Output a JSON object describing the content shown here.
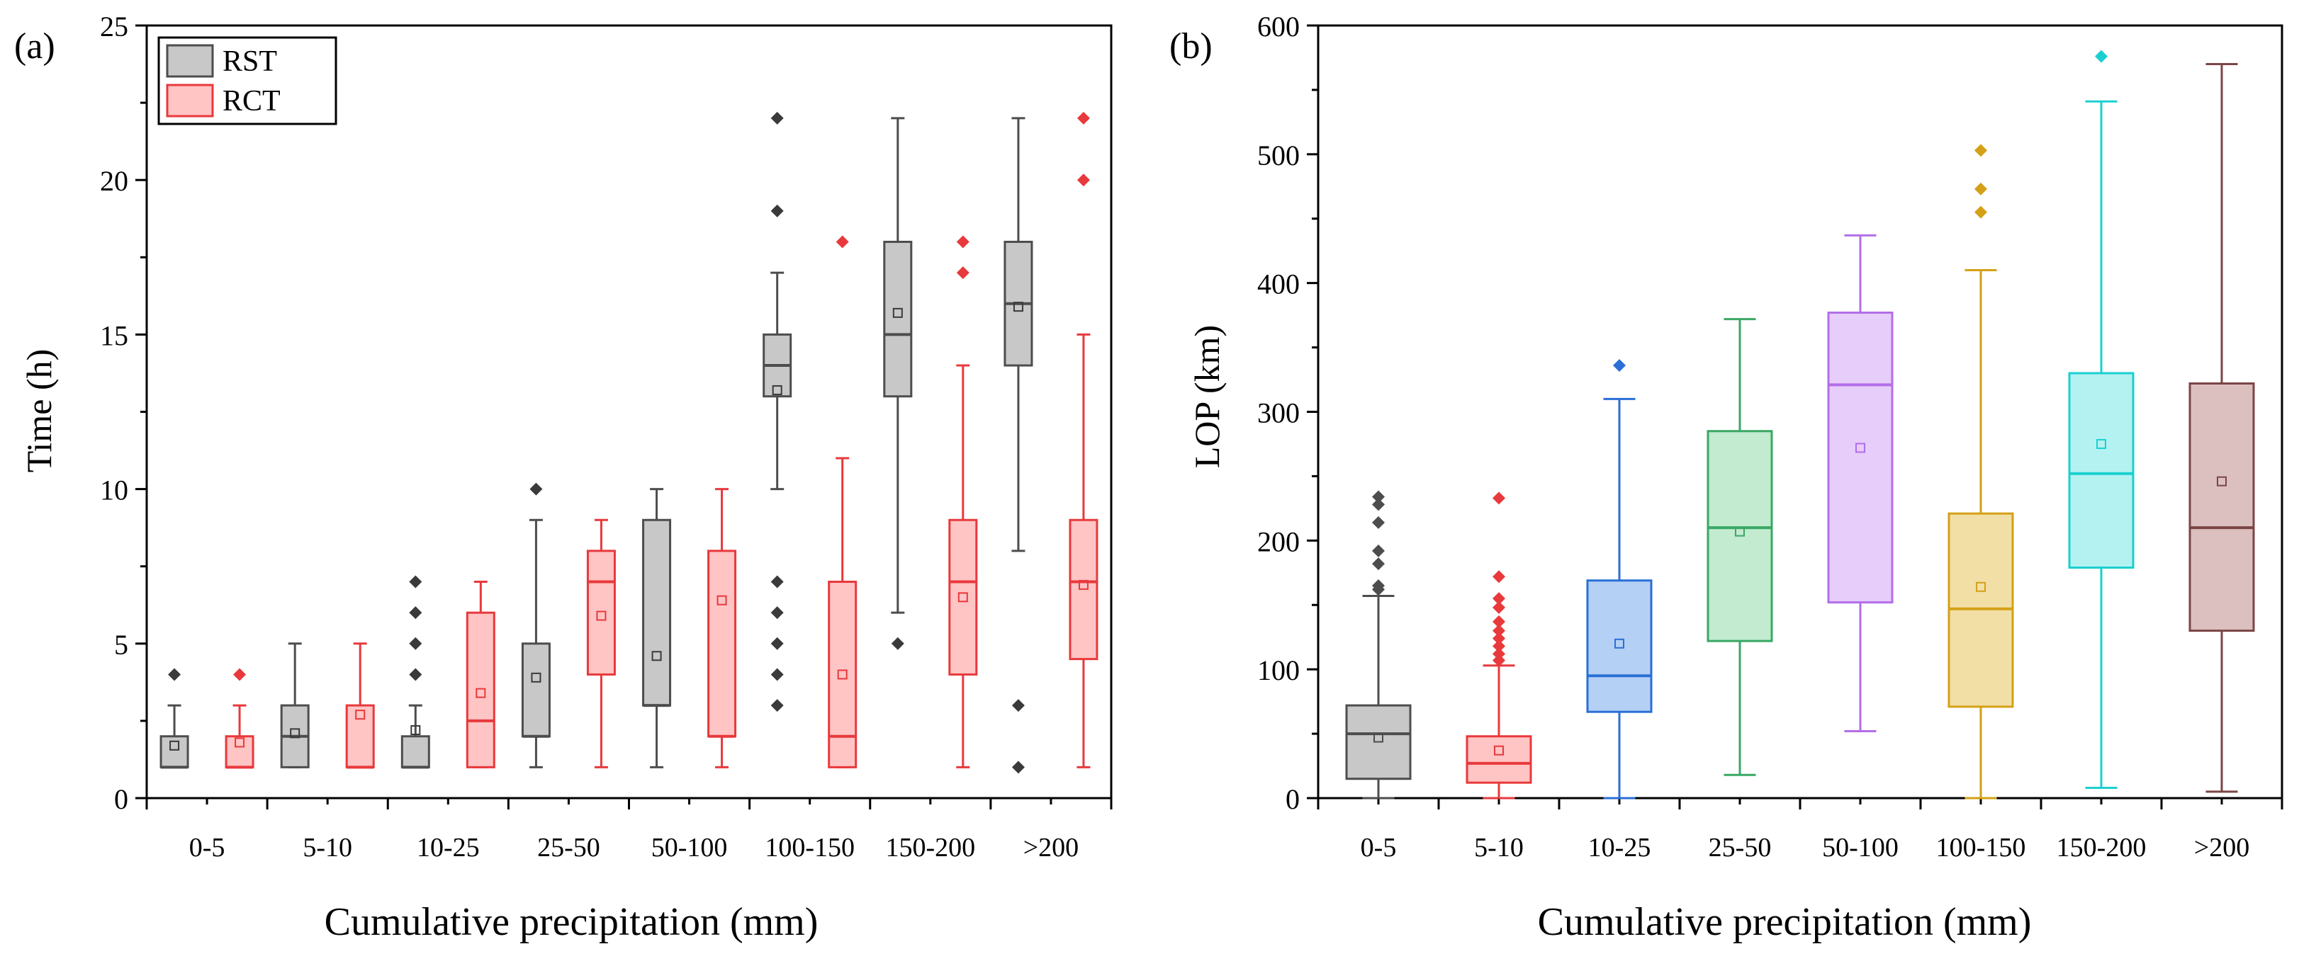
{
  "chart_data": [
    {
      "panel_label": "(a)",
      "type": "box",
      "ylabel": "Time (h)",
      "xlabel": "Cumulative precipitation (mm)",
      "ylim": [
        0,
        25
      ],
      "yticks": [
        0,
        5,
        10,
        15,
        20,
        25
      ],
      "categories": [
        "0-5",
        "5-10",
        "10-25",
        "25-50",
        "50-100",
        "100-150",
        "150-200",
        ">200"
      ],
      "legend": {
        "position": "top-left",
        "entries": [
          "RST",
          "RCT"
        ]
      },
      "series": [
        {
          "name": "RST",
          "fill": "#c8c8c8",
          "stroke": "#4d4d4d",
          "point_color": "#3a3a3a",
          "boxes": [
            {
              "q1": 1,
              "median": 1,
              "q3": 2,
              "mean": 1.7,
              "whisker_low": 1,
              "whisker_high": 3,
              "outliers": [
                4
              ]
            },
            {
              "q1": 1,
              "median": 2,
              "q3": 3,
              "mean": 2.1,
              "whisker_low": 1,
              "whisker_high": 5,
              "outliers": []
            },
            {
              "q1": 1,
              "median": 1,
              "q3": 2,
              "mean": 2.2,
              "whisker_low": 1,
              "whisker_high": 3,
              "outliers": [
                4,
                5,
                6,
                7
              ]
            },
            {
              "q1": 2,
              "median": 2,
              "q3": 5,
              "mean": 3.9,
              "whisker_low": 1,
              "whisker_high": 9,
              "outliers": [
                10
              ]
            },
            {
              "q1": 3,
              "median": 3,
              "q3": 9,
              "mean": 4.6,
              "whisker_low": 1,
              "whisker_high": 10,
              "outliers": []
            },
            {
              "q1": 13,
              "median": 14,
              "q3": 15,
              "mean": 13.2,
              "whisker_low": 10,
              "whisker_high": 17,
              "outliers": [
                3,
                4,
                5,
                6,
                7,
                19,
                22
              ]
            },
            {
              "q1": 13,
              "median": 15,
              "q3": 18,
              "mean": 15.7,
              "whisker_low": 6,
              "whisker_high": 22,
              "outliers": [
                5
              ]
            },
            {
              "q1": 14,
              "median": 16,
              "q3": 18,
              "mean": 15.9,
              "whisker_low": 8,
              "whisker_high": 22,
              "outliers": [
                1,
                3
              ]
            }
          ]
        },
        {
          "name": "RCT",
          "fill": "#ffc4c4",
          "stroke": "#e8393c",
          "point_color": "#e8393c",
          "boxes": [
            {
              "q1": 1,
              "median": 1,
              "q3": 2,
              "mean": 1.8,
              "whisker_low": 1,
              "whisker_high": 3,
              "outliers": [
                4
              ]
            },
            {
              "q1": 1,
              "median": 1,
              "q3": 3,
              "mean": 2.7,
              "whisker_low": 1,
              "whisker_high": 5,
              "outliers": []
            },
            {
              "q1": 1,
              "median": 2.5,
              "q3": 6,
              "mean": 3.4,
              "whisker_low": 1,
              "whisker_high": 7,
              "outliers": []
            },
            {
              "q1": 4,
              "median": 7,
              "q3": 8,
              "mean": 5.9,
              "whisker_low": 1,
              "whisker_high": 9,
              "outliers": []
            },
            {
              "q1": 2,
              "median": 2,
              "q3": 8,
              "mean": 6.4,
              "whisker_low": 1,
              "whisker_high": 10,
              "outliers": []
            },
            {
              "q1": 1,
              "median": 2,
              "q3": 7,
              "mean": 4.0,
              "whisker_low": 1,
              "whisker_high": 11,
              "outliers": [
                18
              ]
            },
            {
              "q1": 4,
              "median": 7,
              "q3": 9,
              "mean": 6.5,
              "whisker_low": 1,
              "whisker_high": 14,
              "outliers": [
                17,
                18
              ]
            },
            {
              "q1": 4.5,
              "median": 7,
              "q3": 9,
              "mean": 6.9,
              "whisker_low": 1,
              "whisker_high": 15,
              "outliers": [
                20,
                22
              ]
            }
          ]
        }
      ]
    },
    {
      "panel_label": "(b)",
      "type": "box",
      "ylabel": "LOP (km)",
      "xlabel": "Cumulative precipitation (mm)",
      "ylim": [
        0,
        600
      ],
      "yticks": [
        0,
        100,
        200,
        300,
        400,
        500,
        600
      ],
      "categories": [
        "0-5",
        "5-10",
        "10-25",
        "25-50",
        "50-100",
        "100-150",
        "150-200",
        ">200"
      ],
      "boxes": [
        {
          "color": "#4d4d4d",
          "fill": "#c8c8c8",
          "q1": 15,
          "median": 50,
          "q3": 72,
          "mean": 47,
          "whisker_low": 0,
          "whisker_high": 157,
          "outliers": [
            162,
            165,
            182,
            192,
            214,
            228,
            234
          ]
        },
        {
          "color": "#e8393c",
          "fill": "#ffc4c4",
          "q1": 12,
          "median": 27,
          "q3": 48,
          "mean": 37,
          "whisker_low": 0,
          "whisker_high": 103,
          "outliers": [
            107,
            112,
            118,
            124,
            130,
            137,
            148,
            155,
            172,
            233
          ]
        },
        {
          "color": "#2a6fd6",
          "fill": "#b5d0f5",
          "q1": 67,
          "median": 95,
          "q3": 169,
          "mean": 120,
          "whisker_low": 0,
          "whisker_high": 310,
          "outliers": [
            336
          ]
        },
        {
          "color": "#3aa864",
          "fill": "#c2ebcf",
          "q1": 122,
          "median": 210,
          "q3": 285,
          "mean": 207,
          "whisker_low": 18,
          "whisker_high": 372,
          "outliers": []
        },
        {
          "color": "#b36ee8",
          "fill": "#e6cdfa",
          "q1": 152,
          "median": 321,
          "q3": 377,
          "mean": 272,
          "whisker_low": 52,
          "whisker_high": 437,
          "outliers": []
        },
        {
          "color": "#d4a017",
          "fill": "#f1dfa6",
          "q1": 71,
          "median": 147,
          "q3": 221,
          "mean": 164,
          "whisker_low": 0,
          "whisker_high": 410,
          "outliers": [
            455,
            473,
            503
          ]
        },
        {
          "color": "#1bcfd0",
          "fill": "#b3f2f1",
          "q1": 179,
          "median": 252,
          "q3": 330,
          "mean": 275,
          "whisker_low": 8,
          "whisker_high": 541,
          "outliers": [
            576
          ]
        },
        {
          "color": "#7b4545",
          "fill": "#dcc0c0",
          "q1": 130,
          "median": 210,
          "q3": 322,
          "mean": 246,
          "whisker_low": 5,
          "whisker_high": 570,
          "outliers": []
        }
      ]
    }
  ]
}
